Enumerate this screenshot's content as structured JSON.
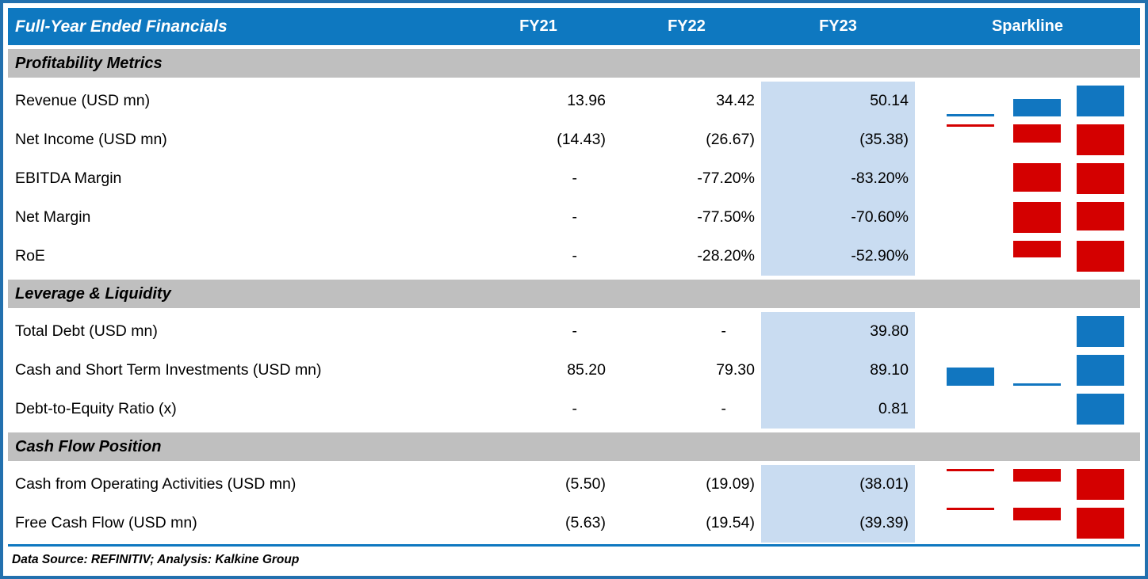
{
  "header": {
    "title": "Full-Year Ended Financials",
    "columns": [
      "FY21",
      "FY22",
      "FY23"
    ],
    "sparkline_label": "Sparkline"
  },
  "footer": "Data Source: REFINITIV; Analysis: Kalkine Group",
  "colors": {
    "header_bg": "#0e78c0",
    "header_text": "#ffffff",
    "section_bg": "#bfbfbf",
    "fy23_band": "#c9dcf1",
    "positive_bar": "#1176c0",
    "negative_bar": "#d40000",
    "frame_border": "#2270ae",
    "text": "#000000"
  },
  "chart_data": {
    "type": "table",
    "title": "Full-Year Ended Financials",
    "columns": [
      "FY21",
      "FY22",
      "FY23"
    ],
    "sparkline_type": "bar",
    "legend": "sparkline bars: blue = positive values, red = negative values",
    "sections": [
      {
        "title": "Profitability Metrics",
        "rows": [
          {
            "label": "Revenue (USD mn)",
            "display": [
              "13.96",
              "34.42",
              "50.14"
            ],
            "values": [
              13.96,
              34.42,
              50.14
            ],
            "spark_scale": "minmax"
          },
          {
            "label": "Net Income (USD mn)",
            "display": [
              "(14.43)",
              "(26.67)",
              "(35.38)"
            ],
            "values": [
              -14.43,
              -26.67,
              -35.38
            ],
            "spark_scale": "minmax"
          },
          {
            "label": "EBITDA Margin",
            "display": [
              "-",
              "-77.20%",
              "-83.20%"
            ],
            "values": [
              null,
              -77.2,
              -83.2
            ],
            "spark_scale": "zero"
          },
          {
            "label": "Net Margin",
            "display": [
              "-",
              "-77.50%",
              "-70.60%"
            ],
            "values": [
              null,
              -77.5,
              -70.6
            ],
            "spark_scale": "zero"
          },
          {
            "label": "RoE",
            "display": [
              "-",
              "-28.20%",
              "-52.90%"
            ],
            "values": [
              null,
              -28.2,
              -52.9
            ],
            "spark_scale": "zero"
          }
        ]
      },
      {
        "title": "Leverage & Liquidity",
        "rows": [
          {
            "label": "Total Debt (USD mn)",
            "display": [
              "-",
              "-",
              "39.80"
            ],
            "values": [
              null,
              null,
              39.8
            ],
            "spark_scale": "zero"
          },
          {
            "label": "Cash and Short Term Investments (USD mn)",
            "display": [
              "85.20",
              "79.30",
              "89.10"
            ],
            "values": [
              85.2,
              79.3,
              89.1
            ],
            "spark_scale": "minmax"
          },
          {
            "label": "Debt-to-Equity Ratio (x)",
            "display": [
              "-",
              "-",
              "0.81"
            ],
            "values": [
              null,
              null,
              0.81
            ],
            "spark_scale": "zero"
          }
        ]
      },
      {
        "title": "Cash Flow Position",
        "rows": [
          {
            "label": "Cash from Operating Activities (USD mn)",
            "display": [
              "(5.50)",
              "(19.09)",
              "(38.01)"
            ],
            "values": [
              -5.5,
              -19.09,
              -38.01
            ],
            "spark_scale": "minmax"
          },
          {
            "label": "Free Cash Flow (USD mn)",
            "display": [
              "(5.63)",
              "(19.54)",
              "(39.39)"
            ],
            "values": [
              -5.63,
              -19.54,
              -39.39
            ],
            "spark_scale": "minmax"
          }
        ]
      }
    ]
  }
}
